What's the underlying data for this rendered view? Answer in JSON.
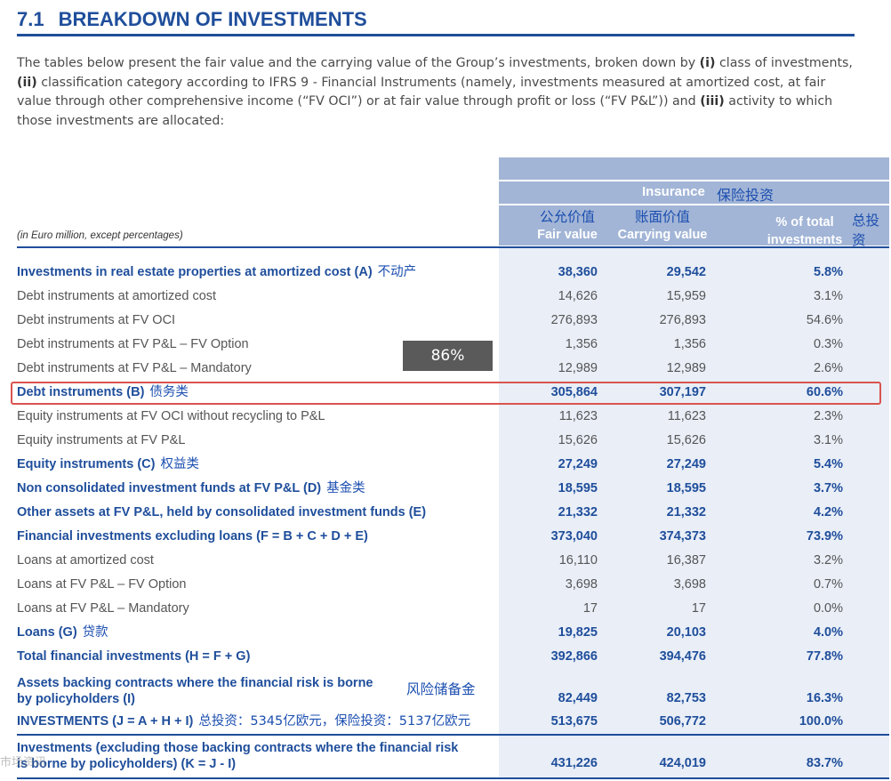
{
  "section": {
    "number": "7.1",
    "title": "BREAKDOWN OF INVESTMENTS"
  },
  "intro": {
    "p1": "The tables below present the fair value and the carrying value of the Group’s investments, broken down by ",
    "b1": "(i)",
    "p2": " class of investments, ",
    "b2": "(ii)",
    "p3": " classification category according to IFRS 9 - Financial Instruments (namely, investments measured at amortized cost, at fair value through other comprehensive income (“FV OCI”) or at fair value through profit or loss (“FV P&L”)) and ",
    "b3": "(iii)",
    "p4": " activity to which those investments are allocated:"
  },
  "table": {
    "units": "(in Euro million, except percentages)",
    "group_label": "Insurance",
    "group_label_cn": "保险投资",
    "columns": [
      {
        "cn": "公允价值",
        "en": "Fair value"
      },
      {
        "cn": "账面价值",
        "en": "Carrying value"
      },
      {
        "cn": "",
        "en": "% of total investments"
      }
    ],
    "extra_col_cn": "总投资",
    "rows": [
      {
        "label": "Investments in real estate properties at amortized cost (A)",
        "cn": "不动产",
        "fv": "38,360",
        "cv": "29,542",
        "pct": "5.8%",
        "bold": true
      },
      {
        "label": "Debt instruments at amortized cost",
        "cn": "",
        "fv": "14,626",
        "cv": "15,959",
        "pct": "3.1%",
        "bold": false
      },
      {
        "label": "Debt instruments at FV OCI",
        "cn": "",
        "fv": "276,893",
        "cv": "276,893",
        "pct": "54.6%",
        "bold": false
      },
      {
        "label": "Debt instruments at FV P&L – FV Option",
        "cn": "",
        "fv": "1,356",
        "cv": "1,356",
        "pct": "0.3%",
        "bold": false
      },
      {
        "label": "Debt instruments at FV P&L – Mandatory",
        "cn": "",
        "fv": "12,989",
        "cv": "12,989",
        "pct": "2.6%",
        "bold": false
      },
      {
        "label": "Debt instruments (B)",
        "cn": "债务类",
        "fv": "305,864",
        "cv": "307,197",
        "pct": "60.6%",
        "bold": true
      },
      {
        "label": "Equity instruments at FV OCI without recycling to P&L",
        "cn": "",
        "fv": "11,623",
        "cv": "11,623",
        "pct": "2.3%",
        "bold": false
      },
      {
        "label": "Equity instruments at FV P&L",
        "cn": "",
        "fv": "15,626",
        "cv": "15,626",
        "pct": "3.1%",
        "bold": false
      },
      {
        "label": "Equity instruments (C)",
        "cn": "权益类",
        "fv": "27,249",
        "cv": "27,249",
        "pct": "5.4%",
        "bold": true
      },
      {
        "label": "Non consolidated investment funds at FV P&L (D)",
        "cn": "基金类",
        "fv": "18,595",
        "cv": "18,595",
        "pct": "3.7%",
        "bold": true
      },
      {
        "label": "Other assets at FV P&L, held by consolidated investment funds (E)",
        "cn": "",
        "fv": "21,332",
        "cv": "21,332",
        "pct": "4.2%",
        "bold": true
      },
      {
        "label": "Financial investments excluding loans (F = B + C + D + E)",
        "cn": "",
        "fv": "373,040",
        "cv": "374,373",
        "pct": "73.9%",
        "bold": true
      },
      {
        "label": "Loans at amortized cost",
        "cn": "",
        "fv": "16,110",
        "cv": "16,387",
        "pct": "3.2%",
        "bold": false
      },
      {
        "label": "Loans at FV P&L – FV Option",
        "cn": "",
        "fv": "3,698",
        "cv": "3,698",
        "pct": "0.7%",
        "bold": false
      },
      {
        "label": "Loans at FV P&L – Mandatory",
        "cn": "",
        "fv": "17",
        "cv": "17",
        "pct": "0.0%",
        "bold": false
      },
      {
        "label": "Loans (G)",
        "cn": "贷款",
        "fv": "19,825",
        "cv": "20,103",
        "pct": "4.0%",
        "bold": true
      },
      {
        "label": "Total financial investments (H = F + G)",
        "cn": "",
        "fv": "392,866",
        "cv": "394,476",
        "pct": "77.8%",
        "bold": true
      }
    ],
    "assets_row": {
      "line1": "Assets backing contracts where the financial risk is borne",
      "line2": "by policyholders (I)",
      "cn": "风险储备金",
      "fv": "82,449",
      "cv": "82,753",
      "pct": "16.3%"
    },
    "investments_row": {
      "label": "INVESTMENTS (J = A + H + I)",
      "cn": "总投资：5345亿欧元，保险投资：5137亿欧元",
      "fv": "513,675",
      "cv": "506,772",
      "pct": "100.0%"
    },
    "excl_row": {
      "line1": "Investments (excluding those backing contracts where the financial risk",
      "line2": "is borne by policyholders) (K = J - I)",
      "fv": "431,226",
      "cv": "424,019",
      "pct": "83.7%"
    }
  },
  "zoom_label": "86%",
  "watermark": "市场资讯"
}
